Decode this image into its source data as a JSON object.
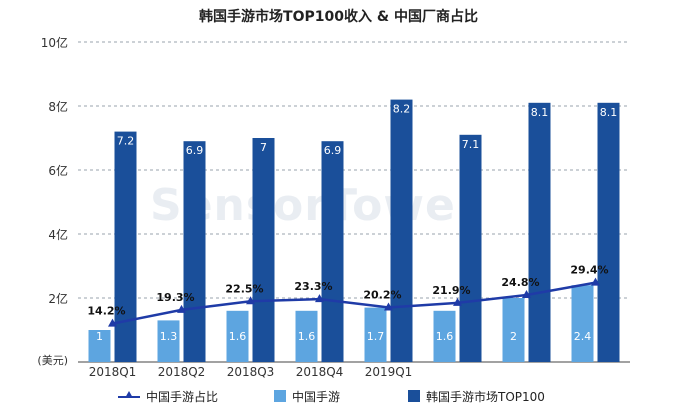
{
  "watermark": "SensorTower",
  "chart_data": {
    "type": "bar",
    "title": "韩国手游市场TOP100收入 & 中国厂商占比",
    "unit_label": "(美元)",
    "y_ticks": [
      "10亿",
      "8亿",
      "6亿",
      "4亿",
      "2亿"
    ],
    "ylim": [
      0,
      10
    ],
    "categories": [
      "2018Q1",
      "2018Q2",
      "2018Q3",
      "2018Q4",
      "2019Q1",
      "",
      "",
      ""
    ],
    "series": [
      {
        "name": "中国手游",
        "type": "bar",
        "color": "#5da5e0",
        "values": [
          1,
          1.3,
          1.6,
          1.6,
          1.7,
          1.6,
          2,
          2.4
        ],
        "labels": [
          "1",
          "1.3",
          "1.6",
          "1.6",
          "1.7",
          "1.6",
          "2",
          "2.4"
        ]
      },
      {
        "name": "韩国手游市场TOP100",
        "type": "bar",
        "color": "#1a4f9a",
        "values": [
          7.2,
          6.9,
          7,
          6.9,
          8.2,
          7.1,
          8.1,
          8.1
        ],
        "labels": [
          "7.2",
          "6.9",
          "7",
          "6.9",
          "8.2",
          "7.1",
          "8.1",
          "8.1"
        ]
      },
      {
        "name": "中国手游占比",
        "type": "line",
        "color": "#1f3ba7",
        "values": [
          14.2,
          19.3,
          22.5,
          23.3,
          20.2,
          21.9,
          24.8,
          29.4
        ],
        "labels": [
          "14.2%",
          "19.3%",
          "22.5%",
          "23.3%",
          "20.2%",
          "21.9%",
          "24.8%",
          "29.4%"
        ]
      }
    ],
    "legend": {
      "position": "bottom",
      "entries": [
        "中国手游占比",
        "中国手游",
        "韩国手游市场TOP100"
      ]
    },
    "grid": true
  }
}
